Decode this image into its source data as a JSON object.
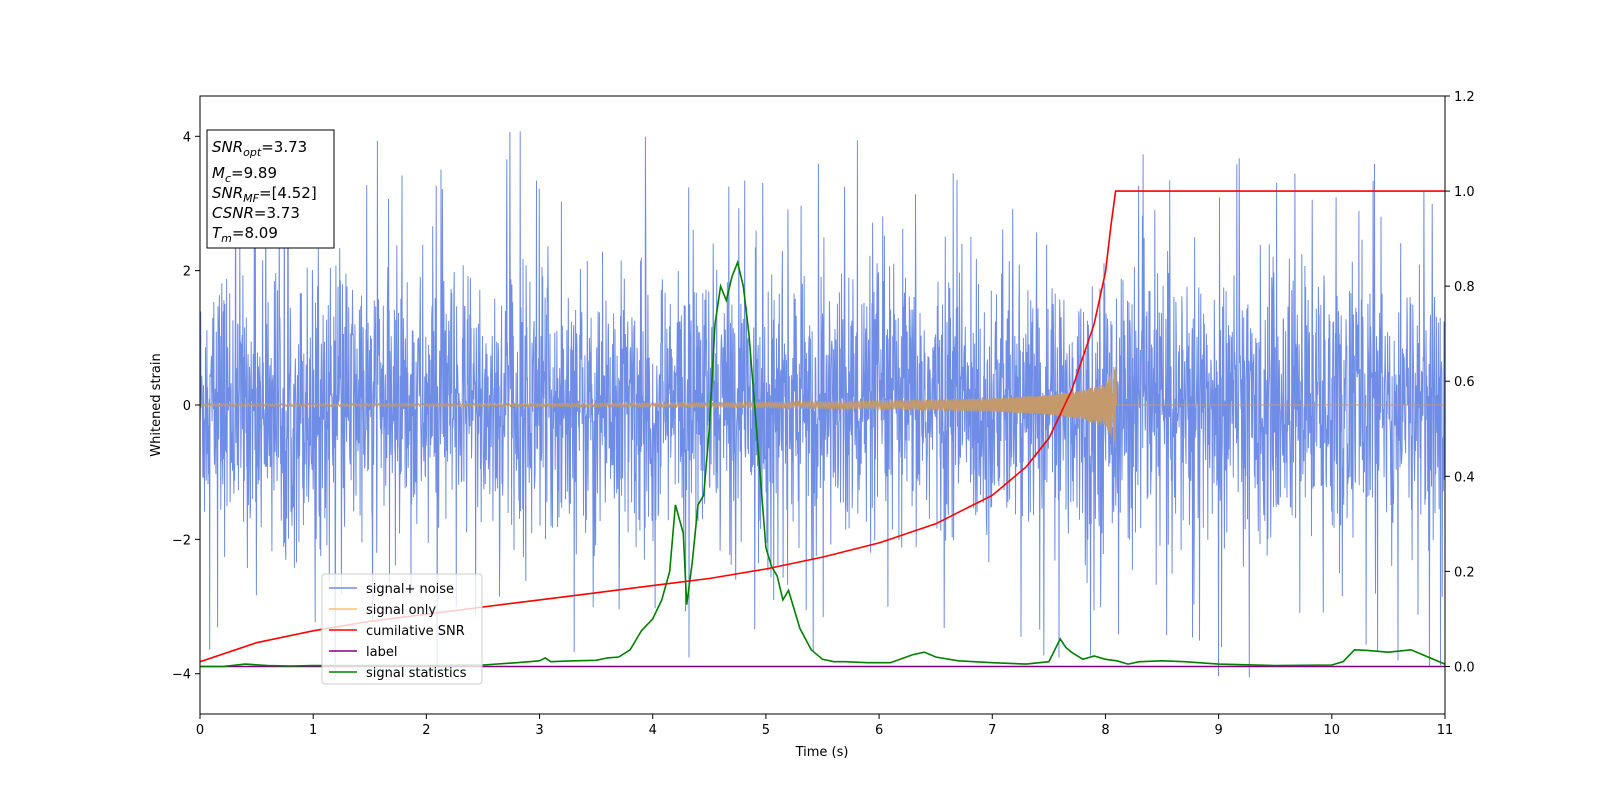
{
  "chart_data": {
    "type": "line",
    "xlabel": "Time (s)",
    "ylabel": "Whitened strain",
    "xlim": [
      0,
      11
    ],
    "ylim_left": [
      -4.6,
      4.6
    ],
    "ylim_right": [
      -0.1,
      1.2
    ],
    "x_ticks": [
      "0",
      "1",
      "2",
      "3",
      "4",
      "5",
      "6",
      "7",
      "8",
      "9",
      "10",
      "11"
    ],
    "y_ticks_left": [
      "−4",
      "−2",
      "0",
      "2",
      "4"
    ],
    "y_ticks_right": [
      "0.0",
      "0.2",
      "0.4",
      "0.6",
      "0.8",
      "1.0",
      "1.2"
    ],
    "grid": false,
    "legend_position": "lower-left",
    "colors": {
      "noise": "#6f8de6",
      "signal": "#f4c36b",
      "signal_shown": "#c49a6c",
      "cumulative": "#ff0000",
      "label": "#800080",
      "statistics": "#008000"
    },
    "series": [
      {
        "name": "signal+ noise",
        "axis": "left",
        "description_values": {
          "typical_range": [
            -2.7,
            2.8
          ],
          "max_peak": 4.17,
          "min_peak": -4.15
        }
      },
      {
        "name": "signal only",
        "axis": "left",
        "x": [
          0,
          2,
          4,
          5,
          6,
          7,
          7.5,
          7.8,
          8.0,
          8.07,
          8.09,
          8.1,
          11
        ],
        "envelope": [
          0.02,
          0.02,
          0.03,
          0.04,
          0.06,
          0.1,
          0.15,
          0.22,
          0.32,
          0.55,
          0.65,
          0,
          0
        ]
      },
      {
        "name": "cumilative SNR",
        "axis": "right",
        "x": [
          0,
          0.5,
          1,
          1.5,
          2,
          2.5,
          3,
          3.5,
          4,
          4.5,
          5,
          5.5,
          6,
          6.5,
          7,
          7.3,
          7.5,
          7.7,
          7.9,
          8.0,
          8.05,
          8.09,
          8.1,
          11
        ],
        "values": [
          0.01,
          0.05,
          0.075,
          0.095,
          0.11,
          0.125,
          0.14,
          0.155,
          0.17,
          0.185,
          0.205,
          0.23,
          0.26,
          0.3,
          0.36,
          0.42,
          0.48,
          0.58,
          0.72,
          0.83,
          0.93,
          1.0,
          1.0,
          1.0
        ]
      },
      {
        "name": "label",
        "axis": "right",
        "x": [
          0,
          11
        ],
        "values": [
          0,
          0
        ]
      },
      {
        "name": "signal statistics",
        "axis": "right",
        "x": [
          0,
          0.2,
          0.4,
          0.6,
          0.8,
          1.0,
          1.5,
          2.0,
          2.5,
          2.8,
          3.0,
          3.05,
          3.1,
          3.3,
          3.5,
          3.6,
          3.7,
          3.8,
          3.9,
          4.0,
          4.08,
          4.15,
          4.2,
          4.27,
          4.3,
          4.35,
          4.4,
          4.45,
          4.5,
          4.55,
          4.6,
          4.65,
          4.7,
          4.75,
          4.8,
          4.85,
          4.9,
          4.95,
          5.0,
          5.05,
          5.1,
          5.15,
          5.2,
          5.25,
          5.3,
          5.4,
          5.5,
          5.6,
          5.7,
          5.9,
          6.1,
          6.3,
          6.4,
          6.5,
          6.7,
          7.0,
          7.3,
          7.5,
          7.6,
          7.65,
          7.7,
          7.8,
          7.9,
          8.0,
          8.1,
          8.2,
          8.3,
          8.5,
          8.7,
          9.0,
          9.5,
          10.0,
          10.1,
          10.2,
          10.3,
          10.5,
          10.7,
          10.8,
          11
        ],
        "values": [
          0,
          0,
          0.005,
          0.002,
          0.001,
          0.002,
          0.002,
          0.002,
          0.003,
          0.008,
          0.012,
          0.018,
          0.01,
          0.012,
          0.013,
          0.018,
          0.02,
          0.035,
          0.075,
          0.1,
          0.14,
          0.2,
          0.34,
          0.28,
          0.13,
          0.22,
          0.34,
          0.36,
          0.5,
          0.72,
          0.8,
          0.77,
          0.82,
          0.85,
          0.8,
          0.7,
          0.55,
          0.4,
          0.25,
          0.21,
          0.19,
          0.14,
          0.16,
          0.12,
          0.08,
          0.035,
          0.015,
          0.01,
          0.01,
          0.008,
          0.008,
          0.025,
          0.03,
          0.02,
          0.012,
          0.008,
          0.005,
          0.01,
          0.058,
          0.04,
          0.03,
          0.015,
          0.022,
          0.015,
          0.012,
          0.005,
          0.01,
          0.012,
          0.01,
          0.005,
          0.002,
          0.003,
          0.01,
          0.035,
          0.034,
          0.03,
          0.035,
          0.025,
          0.005
        ]
      }
    ],
    "stats_box": {
      "snr_opt": "=3.73",
      "mc": "=9.89",
      "snr_mf": "=[4.52]",
      "csnr": "=3.73",
      "tm": "=8.09"
    }
  },
  "stat_symbols": {
    "snr": "SNR",
    "opt": "opt",
    "m": "M",
    "c": "c",
    "mf": "MF",
    "csnr": "CSNR",
    "t": "T",
    "m_sub": "m"
  }
}
